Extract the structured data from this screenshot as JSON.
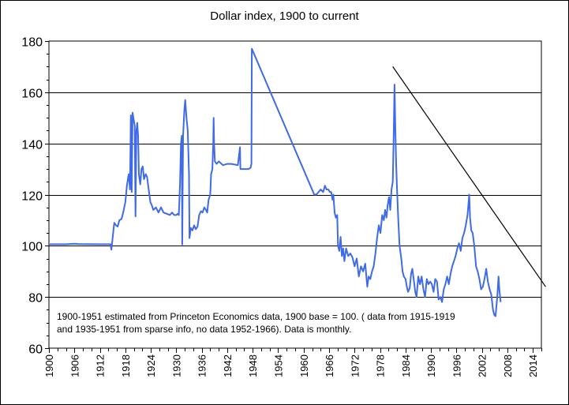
{
  "chart_data": {
    "type": "line",
    "title": "Dollar index, 1900 to current",
    "xlabel": "",
    "ylabel": "",
    "xlim": [
      1900,
      2016
    ],
    "ylim": [
      60,
      180
    ],
    "y_ticks": [
      60,
      80,
      100,
      120,
      140,
      160,
      180
    ],
    "x_ticks": [
      1900,
      1906,
      1912,
      1918,
      1924,
      1930,
      1936,
      1942,
      1948,
      1954,
      1960,
      1966,
      1972,
      1978,
      1984,
      1990,
      1996,
      2002,
      2008,
      2014
    ],
    "grid": "horizontal",
    "annotation": [
      "1900-1951 estimated from Princeton Economics data, 1900 base = 100. ( data from 1915-1919",
      "and 1935-1951 from sparse info, no data 1952-1966). Data is monthly."
    ],
    "series": [
      {
        "name": "Dollar index",
        "color": "#3f6ae8",
        "points": [
          [
            1900,
            100.6
          ],
          [
            1904,
            100.6
          ],
          [
            1906,
            100.8
          ],
          [
            1907,
            100.7
          ],
          [
            1912,
            100.6
          ],
          [
            1914.5,
            100.6
          ],
          [
            1914.7,
            98.5
          ],
          [
            1914.9,
            101.5
          ],
          [
            1915.1,
            104.5
          ],
          [
            1915.4,
            109
          ],
          [
            1915.8,
            108
          ],
          [
            1916.2,
            107.5
          ],
          [
            1916.6,
            110
          ],
          [
            1917.1,
            110.5
          ],
          [
            1917.5,
            113
          ],
          [
            1918.0,
            117
          ],
          [
            1918.4,
            124
          ],
          [
            1918.8,
            128
          ],
          [
            1919.1,
            122
          ],
          [
            1919.3,
            151
          ],
          [
            1919.5,
            121
          ],
          [
            1919.7,
            152
          ],
          [
            1919.9,
            150
          ],
          [
            1920.2,
            147
          ],
          [
            1920.4,
            111.5
          ],
          [
            1920.6,
            145
          ],
          [
            1920.8,
            148
          ],
          [
            1921.0,
            143
          ],
          [
            1921.2,
            128
          ],
          [
            1921.5,
            124
          ],
          [
            1921.8,
            130
          ],
          [
            1922.1,
            131
          ],
          [
            1922.4,
            126
          ],
          [
            1922.8,
            128
          ],
          [
            1923.1,
            127
          ],
          [
            1923.5,
            122
          ],
          [
            1923.9,
            117
          ],
          [
            1924.2,
            116
          ],
          [
            1924.6,
            114
          ],
          [
            1925.2,
            115
          ],
          [
            1925.8,
            113
          ],
          [
            1926.4,
            115
          ],
          [
            1927.0,
            113
          ],
          [
            1927.8,
            112.5
          ],
          [
            1928.5,
            112
          ],
          [
            1929.0,
            113
          ],
          [
            1929.5,
            112
          ],
          [
            1930.0,
            112
          ],
          [
            1930.3,
            112.5
          ],
          [
            1930.6,
            112
          ],
          [
            1930.9,
            125
          ],
          [
            1931.1,
            140
          ],
          [
            1931.3,
            143
          ],
          [
            1931.4,
            100.5
          ],
          [
            1931.6,
            143
          ],
          [
            1931.9,
            153
          ],
          [
            1932.1,
            157
          ],
          [
            1932.4,
            150
          ],
          [
            1932.7,
            145
          ],
          [
            1933.0,
            128
          ],
          [
            1933.1,
            103
          ],
          [
            1933.4,
            107
          ],
          [
            1933.8,
            106
          ],
          [
            1934.2,
            108
          ],
          [
            1934.6,
            106.5
          ],
          [
            1935.0,
            107.5
          ],
          [
            1935.4,
            112
          ],
          [
            1935.8,
            113.5
          ],
          [
            1936.2,
            113
          ],
          [
            1936.6,
            115
          ],
          [
            1937.0,
            114
          ],
          [
            1937.3,
            113
          ],
          [
            1937.6,
            118
          ],
          [
            1938.0,
            120
          ],
          [
            1938.2,
            128
          ],
          [
            1938.5,
            130
          ],
          [
            1938.7,
            140
          ],
          [
            1938.8,
            150
          ],
          [
            1938.9,
            140
          ],
          [
            1939.1,
            133
          ],
          [
            1939.5,
            132
          ],
          [
            1940,
            133
          ],
          [
            1941,
            131.5
          ],
          [
            1942,
            132
          ],
          [
            1943,
            132
          ],
          [
            1944.5,
            131.5
          ],
          [
            1945.0,
            138.5
          ],
          [
            1945.1,
            130
          ],
          [
            1946,
            130
          ],
          [
            1947,
            130
          ],
          [
            1947.5,
            130.5
          ],
          [
            1947.7,
            132
          ],
          [
            1947.8,
            177
          ],
          [
            1962.5,
            120
          ],
          [
            1963,
            120
          ],
          [
            1964,
            122
          ],
          [
            1964.6,
            121
          ],
          [
            1965.0,
            123.5
          ],
          [
            1965.4,
            122
          ],
          [
            1965.8,
            122
          ],
          [
            1966.2,
            121
          ],
          [
            1966.5,
            121
          ],
          [
            1966.8,
            118
          ],
          [
            1967.0,
            120
          ],
          [
            1967.3,
            113
          ],
          [
            1967.6,
            111
          ],
          [
            1967.9,
            112
          ],
          [
            1968.1,
            100
          ],
          [
            1968.4,
            98
          ],
          [
            1968.7,
            103.5
          ],
          [
            1969.0,
            96
          ],
          [
            1969.3,
            99
          ],
          [
            1969.6,
            94
          ],
          [
            1970.0,
            99
          ],
          [
            1970.5,
            96
          ],
          [
            1971.0,
            97
          ],
          [
            1971.5,
            95.5
          ],
          [
            1972.0,
            92
          ],
          [
            1972.5,
            95
          ],
          [
            1973.0,
            88
          ],
          [
            1973.5,
            92
          ],
          [
            1974.0,
            90
          ],
          [
            1974.5,
            93
          ],
          [
            1975.0,
            84
          ],
          [
            1975.3,
            88
          ],
          [
            1975.7,
            87
          ],
          [
            1976.1,
            90
          ],
          [
            1976.5,
            92
          ],
          [
            1976.9,
            97
          ],
          [
            1977.3,
            103
          ],
          [
            1977.7,
            108
          ],
          [
            1978.1,
            105
          ],
          [
            1978.5,
            112
          ],
          [
            1978.9,
            110
          ],
          [
            1979.2,
            114
          ],
          [
            1979.5,
            111
          ],
          [
            1979.8,
            116
          ],
          [
            1980.1,
            119
          ],
          [
            1980.4,
            114
          ],
          [
            1980.7,
            122
          ],
          [
            1981.0,
            125
          ],
          [
            1981.2,
            142
          ],
          [
            1981.4,
            163
          ],
          [
            1981.6,
            145
          ],
          [
            1981.8,
            132
          ],
          [
            1982.0,
            122
          ],
          [
            1982.3,
            110
          ],
          [
            1982.6,
            100
          ],
          [
            1983.0,
            95
          ],
          [
            1983.3,
            90
          ],
          [
            1983.6,
            88
          ],
          [
            1984.0,
            87
          ],
          [
            1984.3,
            84
          ],
          [
            1984.6,
            82
          ],
          [
            1985.0,
            83.5
          ],
          [
            1985.3,
            89
          ],
          [
            1985.6,
            91
          ],
          [
            1986.0,
            86
          ],
          [
            1986.3,
            82
          ],
          [
            1986.6,
            80
          ],
          [
            1987.0,
            88
          ],
          [
            1987.4,
            85
          ],
          [
            1987.8,
            88
          ],
          [
            1988.2,
            83
          ],
          [
            1988.6,
            80
          ],
          [
            1989.0,
            87
          ],
          [
            1989.4,
            85
          ],
          [
            1989.8,
            86
          ],
          [
            1990.2,
            85
          ],
          [
            1990.6,
            82
          ],
          [
            1991.0,
            87
          ],
          [
            1991.4,
            86
          ],
          [
            1991.8,
            79
          ],
          [
            1992.2,
            80
          ],
          [
            1992.6,
            78
          ],
          [
            1993.0,
            83
          ],
          [
            1993.4,
            85
          ],
          [
            1993.8,
            88
          ],
          [
            1994.2,
            85
          ],
          [
            1994.6,
            89
          ],
          [
            1995.0,
            92
          ],
          [
            1995.4,
            94
          ],
          [
            1995.8,
            96
          ],
          [
            1996.2,
            99
          ],
          [
            1996.6,
            101
          ],
          [
            1997.0,
            98
          ],
          [
            1997.4,
            103
          ],
          [
            1997.8,
            105
          ],
          [
            1998.2,
            108
          ],
          [
            1998.6,
            112
          ],
          [
            1999.0,
            120
          ],
          [
            1999.2,
            111
          ],
          [
            1999.5,
            106
          ],
          [
            1999.8,
            105
          ],
          [
            2000.2,
            100
          ],
          [
            2000.6,
            92
          ],
          [
            2001.0,
            90
          ],
          [
            2001.4,
            87
          ],
          [
            2001.8,
            83
          ],
          [
            2002.2,
            84
          ],
          [
            2002.6,
            87
          ],
          [
            2003.0,
            91
          ],
          [
            2003.4,
            86
          ],
          [
            2003.8,
            83
          ],
          [
            2004.2,
            81
          ],
          [
            2004.6,
            75
          ],
          [
            2004.9,
            73
          ],
          [
            2005.2,
            72.5
          ],
          [
            2005.6,
            80
          ],
          [
            2005.9,
            88
          ],
          [
            2006.1,
            83
          ],
          [
            2006.4,
            78
          ]
        ]
      },
      {
        "name": "Trend line",
        "color": "#000000",
        "points": [
          [
            1981.0,
            170
          ],
          [
            2017.0,
            84
          ]
        ]
      }
    ]
  }
}
